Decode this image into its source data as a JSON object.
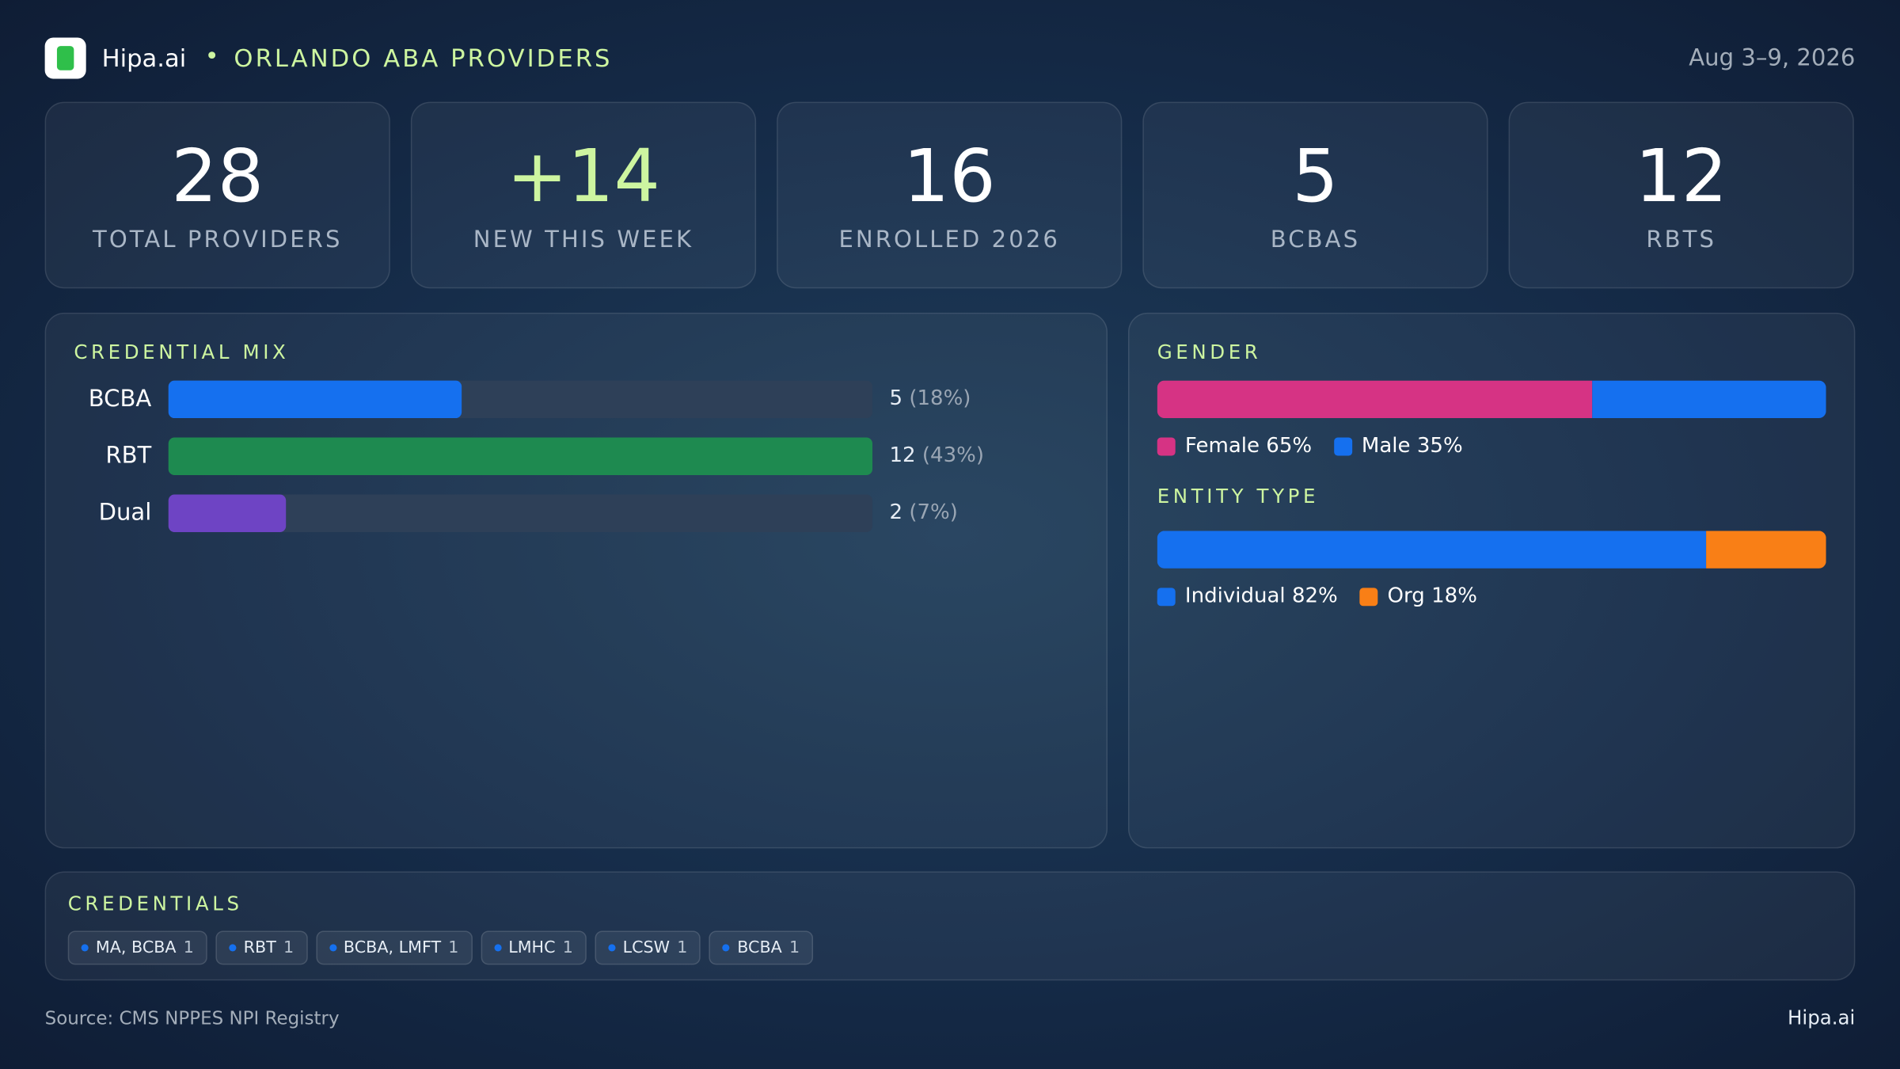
{
  "header": {
    "brand": "Hipa.ai",
    "title": "ORLANDO ABA PROVIDERS",
    "date": "Aug 3–9, 2026"
  },
  "kpis": [
    {
      "value": "28",
      "label": "TOTAL  PROVIDERS"
    },
    {
      "value": "+14",
      "label": "NEW THIS WEEK"
    },
    {
      "value": "16",
      "label": "ENROLLED 2026"
    },
    {
      "value": "5",
      "label": "BCBAS"
    },
    {
      "value": "12",
      "label": "RBTS"
    }
  ],
  "chart_data": [
    {
      "type": "bar",
      "title": "CREDENTIAL MIX",
      "categories": [
        "BCBA",
        "RBT",
        "Dual"
      ],
      "values": [
        5,
        12,
        2
      ],
      "share_labels": [
        "(18%)",
        "(43%)",
        "(7%)"
      ],
      "colors": [
        "#1570ef",
        "#1e8a50",
        "#6e44c4"
      ],
      "xlim": [
        0,
        12
      ]
    },
    {
      "type": "stacked_bar",
      "title": "GENDER",
      "xlim": [
        0,
        100
      ],
      "series": [
        {
          "name": "Female",
          "color": "#d63384",
          "values": [
            65
          ],
          "value_labels": [
            "65%"
          ]
        },
        {
          "name": "Male",
          "color": "#1570ef",
          "values": [
            35
          ],
          "value_labels": [
            "35%"
          ]
        }
      ]
    },
    {
      "type": "stacked_bar",
      "title": "ENTITY TYPE",
      "xlim": [
        0,
        100
      ],
      "series": [
        {
          "name": "Individual",
          "color": "#1570ef",
          "values": [
            82
          ],
          "value_labels": [
            "82%"
          ]
        },
        {
          "name": "Org",
          "color": "#f97f16",
          "values": [
            18
          ],
          "value_labels": [
            "18%"
          ]
        }
      ]
    }
  ],
  "credentials": {
    "title": "CREDENTIALS",
    "items": [
      {
        "label": "MA, BCBA",
        "count": 1
      },
      {
        "label": "RBT",
        "count": 1
      },
      {
        "label": "BCBA, LMFT",
        "count": 1
      },
      {
        "label": "LMHC",
        "count": 1
      },
      {
        "label": "LCSW",
        "count": 1
      },
      {
        "label": "BCBA",
        "count": 1
      }
    ]
  },
  "footer": {
    "source": "Source: CMS NPPES NPI Registry",
    "brand": "Hipa.ai"
  }
}
